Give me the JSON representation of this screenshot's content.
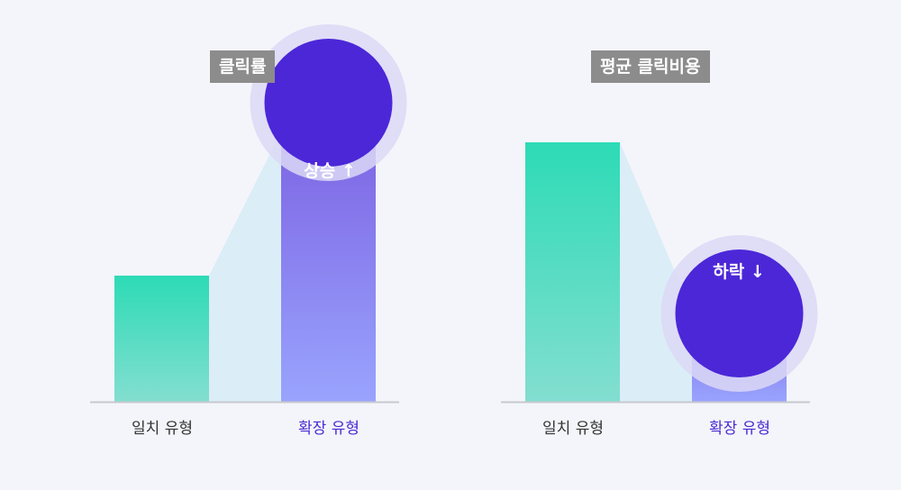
{
  "colors": {
    "background": "#f4f5fa",
    "match_bar_top": "#2ddbb6",
    "match_bar_bottom": "#83ded0",
    "expand_bar_top": "#7d64e4",
    "expand_bar_bottom": "#99a4fd",
    "circle_fill": "#4b27d8",
    "circle_halo": "#dcd8f6",
    "connector": "#d6ebf6",
    "baseline": "#c7c9cf",
    "title_badge": "#8c8c8c",
    "label_default": "#333333",
    "label_accent": "#4a2bd3"
  },
  "chart_data": [
    {
      "type": "bar",
      "title": "클릭률",
      "categories": [
        "일치 유형",
        "확장 유형"
      ],
      "values": [
        35,
        75
      ],
      "ylim": [
        0,
        100
      ],
      "highlight": {
        "category": "확장 유형",
        "label": "상승 ↑",
        "direction": "up"
      },
      "grid": false,
      "legend": "none"
    },
    {
      "type": "bar",
      "title": "평균 클릭비용",
      "categories": [
        "일치 유형",
        "확장 유형"
      ],
      "values": [
        72,
        25
      ],
      "ylim": [
        0,
        100
      ],
      "highlight": {
        "category": "확장 유형",
        "label": "하락 ↓",
        "direction": "down"
      },
      "grid": false,
      "legend": "none"
    }
  ]
}
